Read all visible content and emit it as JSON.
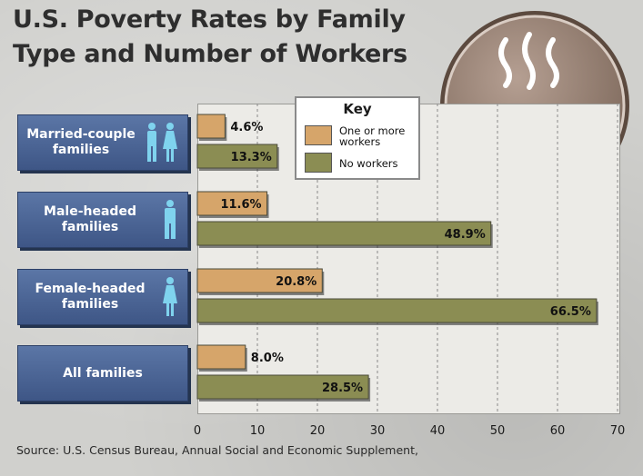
{
  "title": {
    "line1": "U.S. Poverty Rates by Family",
    "line2": "Type and Number of Workers"
  },
  "source": "Source: U.S. Census Bureau, Annual Social and Economic Supplement,",
  "key": {
    "title": "Key",
    "items": [
      {
        "label": "One or more\nworkers",
        "color": "#d6a56a"
      },
      {
        "label": "No workers",
        "color": "#8b8d53"
      }
    ]
  },
  "emblem": {
    "icon": "soup-bowl-hands-icon"
  },
  "chart_data": {
    "type": "bar",
    "orientation": "horizontal",
    "categories": [
      "Married-couple\nfamilies",
      "Male-headed\nfamilies",
      "Female-headed\nfamilies",
      "All families"
    ],
    "category_icons": [
      "man-woman-icon",
      "man-icon",
      "woman-icon",
      ""
    ],
    "series": [
      {
        "name": "One or more workers",
        "values": [
          4.6,
          11.6,
          20.8,
          8.0
        ],
        "labels": [
          "4.6%",
          "11.6%",
          "20.8%",
          "8.0%"
        ],
        "color": "#d6a56a"
      },
      {
        "name": "No workers",
        "values": [
          13.3,
          48.9,
          66.5,
          28.5
        ],
        "labels": [
          "13.3%",
          "48.9%",
          "66.5%",
          "28.5%"
        ],
        "color": "#8b8d53"
      }
    ],
    "xlim": [
      0,
      70
    ],
    "x_ticks": [
      "0",
      "10",
      "20",
      "30",
      "40",
      "50",
      "60",
      "70"
    ],
    "grid": true,
    "legend": "top-center",
    "title": "U.S. Poverty Rates by Family Type and Number of Workers",
    "xlabel": "",
    "ylabel": ""
  }
}
